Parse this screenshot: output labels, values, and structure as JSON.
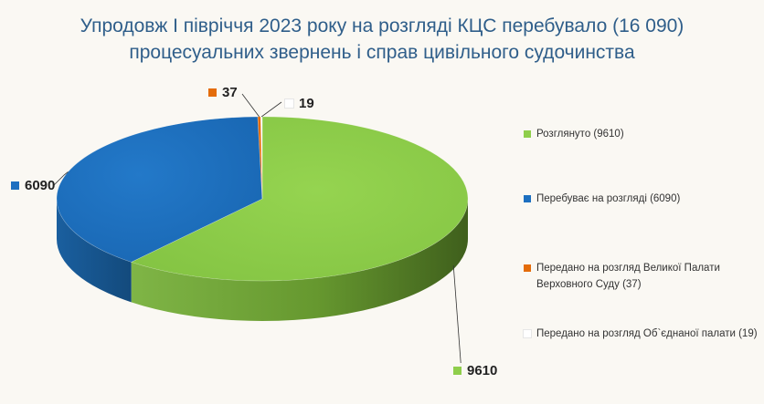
{
  "title": {
    "line1": "Упродовж І півріччя 2023 року на розгляді КЦС перебувало (16 090)",
    "line2": "процесуальних звернень і справ цивільного судочинства"
  },
  "colors": {
    "green": "#8fce4b",
    "blue": "#1c6fc0",
    "orange": "#e46c0a",
    "white": "#ffffff",
    "title": "#2f5e8a"
  },
  "chart_data": {
    "type": "pie",
    "three_d": true,
    "categories": [
      "Розглянуто (9610)",
      "Перебуває на розгляді (6090)",
      "Передано на розгляд Великої Палати Верховного Суду (37)",
      "Передано на розгляд  Об`єднаної палати (19)"
    ],
    "values": [
      9610,
      6090,
      37,
      19
    ],
    "data_labels": [
      "9610",
      "6090",
      "37",
      "19"
    ],
    "legend_placement": "right"
  },
  "legend": [
    {
      "text": "Розглянуто (9610)",
      "color_key": "green"
    },
    {
      "text": "Перебуває на розгляді (6090)",
      "color_key": "blue"
    },
    {
      "text": "Передано на розгляд Великої Палати\nВерховного Суду (37)",
      "color_key": "orange"
    },
    {
      "text": "Передано на розгляд  Об`єднаної палати (19)",
      "color_key": "white"
    }
  ]
}
